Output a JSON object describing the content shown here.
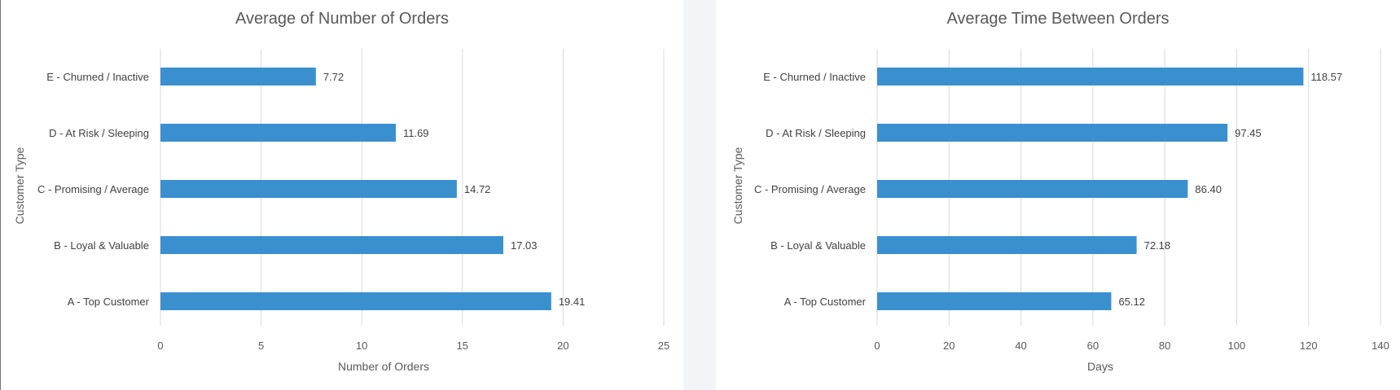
{
  "chart_data": [
    {
      "type": "bar",
      "orientation": "horizontal",
      "title": "Average of Number of Orders",
      "xlabel": "Number of Orders",
      "ylabel": "Customer Type",
      "categories": [
        "E - Churned / Inactive",
        "D - At Risk / Sleeping",
        "C - Promising / Average",
        "B - Loyal & Valuable",
        "A - Top Customer"
      ],
      "values": [
        7.72,
        11.69,
        14.72,
        17.03,
        19.41
      ],
      "value_labels": [
        "7.72",
        "11.69",
        "14.72",
        "17.03",
        "19.41"
      ],
      "xlim": [
        0,
        25
      ],
      "ticks": [
        0,
        5,
        10,
        15,
        20,
        25
      ],
      "grid": true,
      "color": "#3a8fce"
    },
    {
      "type": "bar",
      "orientation": "horizontal",
      "title": "Average Time Between Orders",
      "xlabel": "Days",
      "ylabel": "Customer Type",
      "categories": [
        "E - Churned / Inactive",
        "D - At Risk / Sleeping",
        "C - Promising / Average",
        "B - Loyal & Valuable",
        "A - Top Customer"
      ],
      "values": [
        118.57,
        97.45,
        86.4,
        72.18,
        65.12
      ],
      "value_labels": [
        "118.57",
        "97.45",
        "86.40",
        "72.18",
        "65.12"
      ],
      "xlim": [
        0,
        140
      ],
      "ticks": [
        0,
        20,
        40,
        60,
        80,
        100,
        120,
        140
      ],
      "grid": true,
      "color": "#3a8fce"
    }
  ]
}
